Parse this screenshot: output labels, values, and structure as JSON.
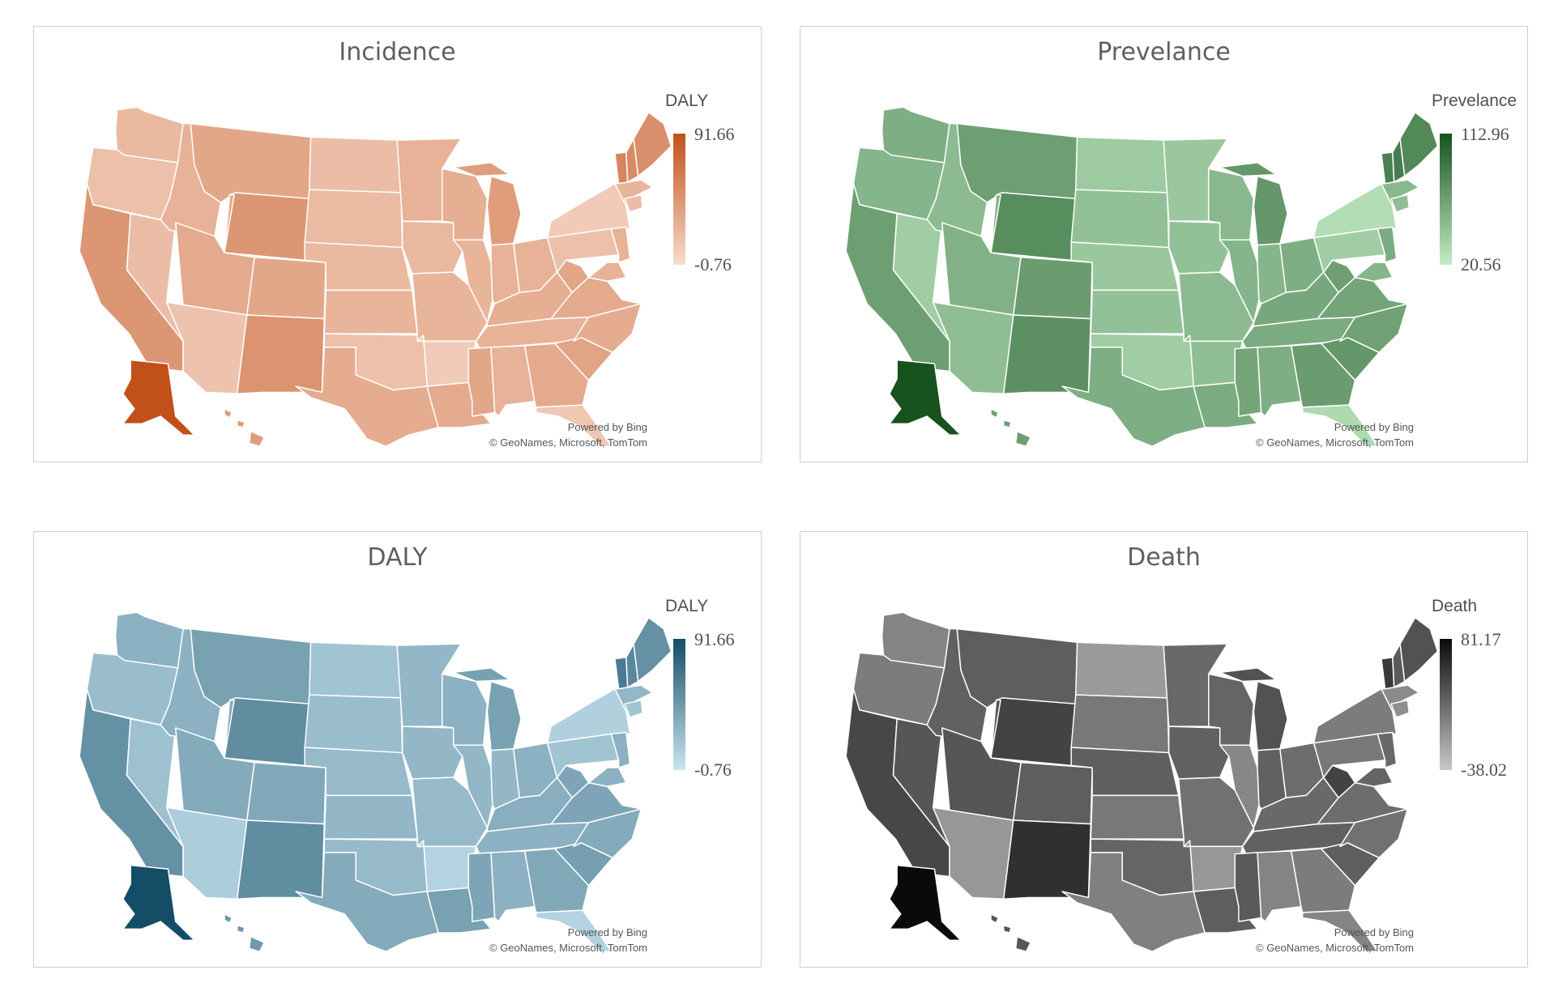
{
  "panels": [
    {
      "title": "Incidence",
      "legend": {
        "title": "DALY",
        "max": "91.66",
        "min": "-0.76",
        "color_low": "#f7dccd",
        "color_high": "#c1501a"
      },
      "attribution": {
        "line1": "Powered by Bing",
        "line2": "© GeoNames, Microsoft, TomTom"
      }
    },
    {
      "title": "Prevelance",
      "legend": {
        "title": "Prevelance",
        "max": "112.96",
        "min": "20.56",
        "color_low": "#c3ecc6",
        "color_high": "#17521f"
      },
      "attribution": {
        "line1": "Powered by Bing",
        "line2": "© GeoNames, Microsoft, TomTom"
      }
    },
    {
      "title": "DALY",
      "legend": {
        "title": "DALY",
        "max": "91.66",
        "min": "-0.76",
        "color_low": "#c9e5f1",
        "color_high": "#144d66"
      },
      "attribution": {
        "line1": "Powered by Bing",
        "line2": "© GeoNames, Microsoft, TomTom"
      }
    },
    {
      "title": "Death",
      "legend": {
        "title": "Death",
        "max": "81.17",
        "min": "-38.02",
        "color_low": "#c8c8c8",
        "color_high": "#0a0a0a"
      },
      "attribution": {
        "line1": "Powered by Bing",
        "line2": "© GeoNames, Microsoft, TomTom"
      }
    }
  ],
  "shading": {
    "note_keys": "relative shade level 0 (light) to 1 (dark) per region for each panel",
    "incidence": {
      "WA": 0.25,
      "OR": 0.2,
      "CA": 0.5,
      "NV": 0.22,
      "ID": 0.3,
      "MT": 0.38,
      "WY": 0.5,
      "UT": 0.36,
      "AZ": 0.18,
      "CO": 0.38,
      "NM": 0.52,
      "ND": 0.22,
      "SD": 0.24,
      "NE": 0.25,
      "KS": 0.28,
      "OK": 0.2,
      "TX": 0.34,
      "MN": 0.3,
      "IA": 0.26,
      "MO": 0.28,
      "AR": 0.12,
      "LA": 0.35,
      "WI": 0.32,
      "IL": 0.28,
      "MI": 0.45,
      "IN": 0.3,
      "OH": 0.3,
      "KY": 0.32,
      "TN": 0.3,
      "MS": 0.38,
      "AL": 0.3,
      "GA": 0.36,
      "FL": 0.15,
      "SC": 0.4,
      "NC": 0.34,
      "VA": 0.36,
      "WV": 0.38,
      "PA": 0.2,
      "NY": 0.12,
      "VT": 0.62,
      "NH": 0.58,
      "ME": 0.55,
      "MA": 0.28,
      "CT": 0.22,
      "NJ": 0.3,
      "MD": 0.3,
      "AK": 1.0,
      "HI": 0.45
    },
    "prevalence": {
      "WA": 0.4,
      "OR": 0.36,
      "CA": 0.5,
      "NV": 0.2,
      "ID": 0.32,
      "MT": 0.5,
      "WY": 0.62,
      "UT": 0.38,
      "AZ": 0.3,
      "CO": 0.52,
      "NM": 0.6,
      "ND": 0.22,
      "SD": 0.28,
      "NE": 0.24,
      "KS": 0.28,
      "OK": 0.2,
      "TX": 0.4,
      "MN": 0.24,
      "IA": 0.28,
      "MO": 0.32,
      "AR": 0.3,
      "LA": 0.42,
      "WI": 0.34,
      "IL": 0.36,
      "MI": 0.55,
      "IN": 0.36,
      "OH": 0.4,
      "KY": 0.44,
      "TN": 0.42,
      "MS": 0.46,
      "AL": 0.4,
      "GA": 0.52,
      "FL": 0.12,
      "SC": 0.55,
      "NC": 0.48,
      "VA": 0.46,
      "WV": 0.5,
      "PA": 0.2,
      "NY": 0.1,
      "VT": 0.7,
      "NH": 0.72,
      "ME": 0.65,
      "MA": 0.34,
      "CT": 0.3,
      "NJ": 0.42,
      "MD": 0.36,
      "AK": 1.0,
      "HI": 0.5
    },
    "daly": {
      "WA": 0.34,
      "OR": 0.26,
      "CA": 0.55,
      "NV": 0.24,
      "ID": 0.34,
      "MT": 0.45,
      "WY": 0.58,
      "UT": 0.38,
      "AZ": 0.16,
      "CO": 0.4,
      "NM": 0.58,
      "ND": 0.22,
      "SD": 0.26,
      "NE": 0.28,
      "KS": 0.3,
      "OK": 0.28,
      "TX": 0.38,
      "MN": 0.3,
      "IA": 0.3,
      "MO": 0.28,
      "AR": 0.12,
      "LA": 0.45,
      "WI": 0.34,
      "IL": 0.3,
      "MI": 0.45,
      "IN": 0.3,
      "OH": 0.34,
      "KY": 0.36,
      "TN": 0.34,
      "MS": 0.42,
      "AL": 0.34,
      "GA": 0.4,
      "FL": 0.12,
      "SC": 0.46,
      "NC": 0.38,
      "VA": 0.42,
      "WV": 0.42,
      "PA": 0.22,
      "NY": 0.14,
      "VT": 0.7,
      "NH": 0.62,
      "ME": 0.55,
      "MA": 0.3,
      "CT": 0.22,
      "NJ": 0.34,
      "MD": 0.34,
      "AK": 1.0,
      "HI": 0.5
    },
    "death": {
      "WA": 0.36,
      "OR": 0.4,
      "CA": 0.68,
      "NV": 0.6,
      "ID": 0.54,
      "MT": 0.56,
      "WY": 0.7,
      "UT": 0.6,
      "AZ": 0.26,
      "CO": 0.56,
      "NM": 0.8,
      "ND": 0.24,
      "SD": 0.42,
      "NE": 0.55,
      "KS": 0.42,
      "OK": 0.52,
      "TX": 0.38,
      "MN": 0.5,
      "IA": 0.54,
      "MO": 0.46,
      "AR": 0.26,
      "LA": 0.56,
      "WI": 0.52,
      "IL": 0.34,
      "MI": 0.62,
      "IN": 0.54,
      "OH": 0.48,
      "KY": 0.5,
      "TN": 0.54,
      "MS": 0.58,
      "AL": 0.36,
      "GA": 0.4,
      "FL": 0.36,
      "SC": 0.55,
      "NC": 0.46,
      "VA": 0.48,
      "WV": 0.7,
      "PA": 0.42,
      "NY": 0.4,
      "VT": 0.75,
      "NH": 0.58,
      "ME": 0.62,
      "MA": 0.32,
      "CT": 0.3,
      "NJ": 0.5,
      "MD": 0.52,
      "AK": 1.0,
      "HI": 0.6
    }
  }
}
